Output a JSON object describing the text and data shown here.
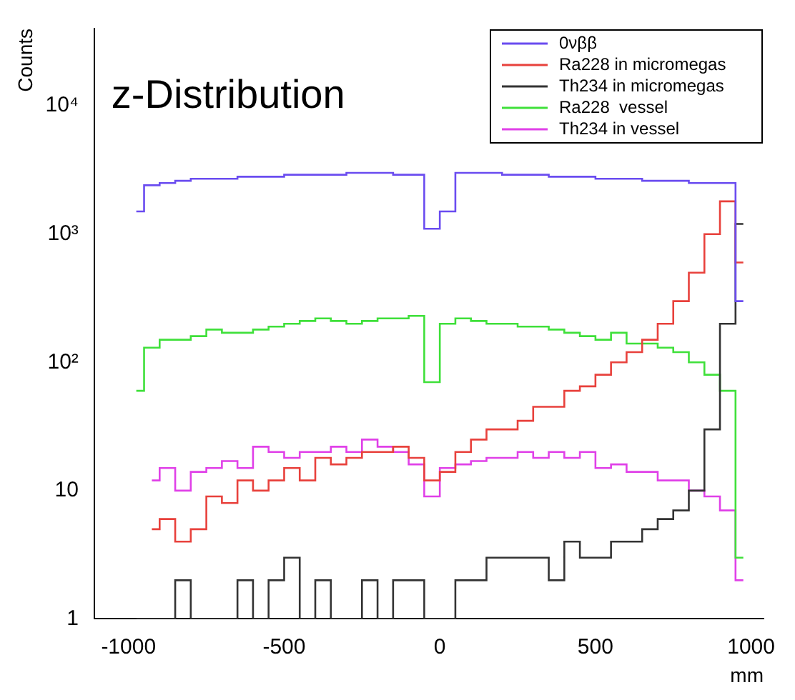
{
  "chart_data": {
    "type": "step",
    "title": "z-Distribution",
    "xlabel": "mm",
    "ylabel": "Counts",
    "log": "y",
    "grid": false,
    "legend": "top right",
    "marker": "none",
    "line_style": "solid",
    "x": [
      -975,
      -925,
      -875,
      -825,
      -775,
      -725,
      -675,
      -625,
      -575,
      -525,
      -475,
      -425,
      -375,
      -325,
      -275,
      -225,
      -175,
      -125,
      -75,
      -25,
      25,
      75,
      125,
      175,
      225,
      275,
      325,
      375,
      425,
      475,
      525,
      575,
      625,
      675,
      725,
      775,
      825,
      875,
      925,
      975
    ],
    "xlim": [
      -1110,
      1040
    ],
    "xticks": [
      -1000,
      -500,
      0,
      500,
      1000
    ],
    "ylim": [
      1,
      40000
    ],
    "yticks": [
      1,
      10,
      {
        "value": 100,
        "label": "10²"
      },
      {
        "value": 1000,
        "label": "10³"
      },
      {
        "value": 10000,
        "label": "10⁴"
      }
    ],
    "series": [
      {
        "name": "0νββ",
        "color": "#6a4cf0",
        "values": [
          1500,
          2400,
          2500,
          2600,
          2700,
          2700,
          2700,
          2800,
          2800,
          2800,
          2900,
          2900,
          2900,
          2900,
          3000,
          3000,
          3000,
          2900,
          2900,
          1100,
          1500,
          3000,
          3000,
          3000,
          2900,
          2900,
          2900,
          2800,
          2800,
          2800,
          2700,
          2700,
          2700,
          2600,
          2600,
          2600,
          2500,
          2500,
          2500,
          300
        ]
      },
      {
        "name": "Ra228 in micromegas",
        "color": "#e8413c",
        "values": [
          null,
          5,
          6,
          4,
          5,
          9,
          8,
          12,
          10,
          12,
          15,
          12,
          18,
          16,
          18,
          20,
          20,
          22,
          18,
          12,
          14,
          20,
          25,
          30,
          30,
          35,
          45,
          45,
          60,
          65,
          80,
          100,
          120,
          150,
          200,
          300,
          500,
          1000,
          1800,
          600
        ]
      },
      {
        "name": "Th234 in micromegas",
        "color": "#333333",
        "values": [
          1,
          1,
          1,
          2,
          1,
          1,
          1,
          2,
          1,
          2,
          3,
          1,
          2,
          1,
          1,
          2,
          1,
          2,
          2,
          1,
          1,
          2,
          2,
          3,
          3,
          3,
          3,
          2,
          4,
          3,
          3,
          4,
          4,
          5,
          6,
          7,
          10,
          30,
          200,
          1200
        ]
      },
      {
        "name": "Ra228  vessel",
        "color": "#3fe03a",
        "values": [
          60,
          130,
          150,
          150,
          160,
          180,
          170,
          170,
          180,
          190,
          200,
          210,
          220,
          210,
          200,
          210,
          220,
          220,
          230,
          70,
          200,
          220,
          210,
          200,
          200,
          190,
          190,
          180,
          170,
          160,
          150,
          170,
          140,
          140,
          130,
          120,
          100,
          80,
          60,
          3
        ]
      },
      {
        "name": "Th234 in vessel",
        "color": "#e040e8",
        "values": [
          null,
          12,
          15,
          10,
          14,
          15,
          17,
          15,
          22,
          20,
          18,
          20,
          20,
          22,
          20,
          25,
          22,
          20,
          16,
          9,
          15,
          16,
          17,
          18,
          18,
          20,
          18,
          20,
          18,
          20,
          15,
          16,
          14,
          14,
          12,
          12,
          10,
          9,
          7,
          2
        ]
      }
    ]
  }
}
